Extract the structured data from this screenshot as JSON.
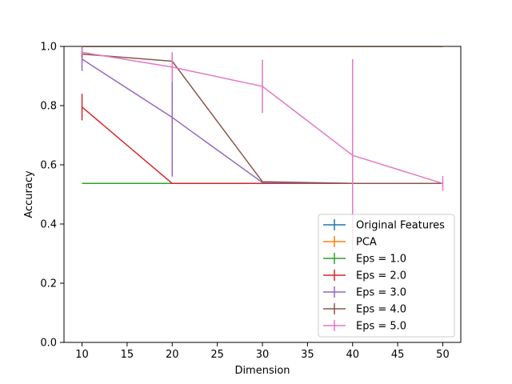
{
  "chart_data": {
    "type": "line",
    "title": "",
    "xlabel": "Dimension",
    "ylabel": "Accuracy",
    "xlim": [
      8,
      52
    ],
    "ylim": [
      0.0,
      1.0
    ],
    "xticks": [
      10,
      15,
      20,
      25,
      30,
      35,
      40,
      45,
      50
    ],
    "xtick_labels": [
      "10",
      "15",
      "20",
      "25",
      "30",
      "35",
      "40",
      "45",
      "50"
    ],
    "yticks": [
      0.0,
      0.2,
      0.4,
      0.6,
      0.8,
      1.0
    ],
    "ytick_labels": [
      "0.0",
      "0.2",
      "0.4",
      "0.6",
      "0.8",
      "1.0"
    ],
    "grid": false,
    "legend_position": "lower-right",
    "series": [
      {
        "name": "Original Features",
        "color": "#1f77b4",
        "x": [
          10,
          20,
          30,
          40,
          50
        ],
        "y": [
          1.0,
          1.0,
          1.0,
          1.0,
          1.0
        ],
        "err": [
          0,
          0,
          0,
          0,
          0
        ]
      },
      {
        "name": "PCA",
        "color": "#ff7f0e",
        "x": [
          10,
          20,
          30,
          40,
          50
        ],
        "y": [
          1.0,
          1.0,
          1.0,
          1.0,
          1.0
        ],
        "err": [
          0,
          0,
          0,
          0,
          0
        ]
      },
      {
        "name": "Eps = 1.0",
        "color": "#2ca02c",
        "x": [
          10,
          20,
          30,
          40,
          50
        ],
        "y": [
          0.537,
          0.537,
          0.537,
          0.537,
          0.537
        ],
        "err": [
          0,
          0,
          0,
          0,
          0
        ]
      },
      {
        "name": "Eps = 2.0",
        "color": "#d62728",
        "x": [
          10,
          20,
          30,
          40,
          50
        ],
        "y": [
          0.795,
          0.537,
          0.537,
          0.537,
          0.537
        ],
        "err": [
          0.045,
          0.0,
          0.0,
          0.0,
          0.0
        ]
      },
      {
        "name": "Eps = 3.0",
        "color": "#9467bd",
        "x": [
          10,
          20,
          30,
          40,
          50
        ],
        "y": [
          0.957,
          0.76,
          0.54,
          0.537,
          0.537
        ],
        "err": [
          0.04,
          0.2,
          0.0,
          0.0,
          0.0
        ]
      },
      {
        "name": "Eps = 4.0",
        "color": "#8c564b",
        "x": [
          10,
          20,
          30,
          40,
          50
        ],
        "y": [
          0.974,
          0.95,
          0.543,
          0.537,
          0.537
        ],
        "err": [
          0.01,
          0.03,
          0.0,
          0.0,
          0.0
        ]
      },
      {
        "name": "Eps = 5.0",
        "color": "#e377c2",
        "x": [
          10,
          20,
          30,
          40,
          50
        ],
        "y": [
          0.98,
          0.93,
          0.865,
          0.632,
          0.537
        ],
        "err": [
          0.01,
          0.05,
          0.09,
          0.325,
          0.025
        ]
      }
    ]
  }
}
